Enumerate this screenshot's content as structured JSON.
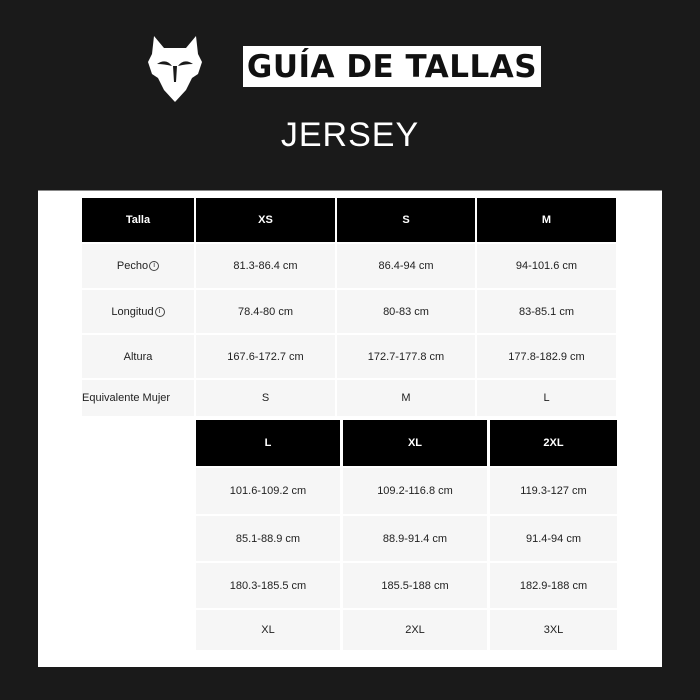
{
  "header": {
    "logo": "FOX",
    "title": "GUÍA DE TALLAS",
    "subtitle": "JERSEY"
  },
  "table1": {
    "header": [
      "Talla",
      "XS",
      "S",
      "M"
    ],
    "rows": [
      {
        "label": "Pecho",
        "info": true,
        "values": [
          "81.3-86.4 cm",
          "86.4-94 cm",
          "94-101.6 cm"
        ]
      },
      {
        "label": "Longitud",
        "info": true,
        "values": [
          "78.4-80 cm",
          "80-83 cm",
          "83-85.1 cm"
        ]
      },
      {
        "label": "Altura",
        "info": false,
        "values": [
          "167.6-172.7 cm",
          "172.7-177.8 cm",
          "177.8-182.9 cm"
        ]
      },
      {
        "label": "Equivalente Mujer",
        "info": false,
        "values": [
          "S",
          "M",
          "L"
        ]
      }
    ]
  },
  "table2": {
    "header": [
      "L",
      "XL",
      "2XL"
    ],
    "rows": [
      [
        "101.6-109.2 cm",
        "109.2-116.8 cm",
        "119.3-127 cm"
      ],
      [
        "85.1-88.9 cm",
        "88.9-91.4 cm",
        "91.4-94 cm"
      ],
      [
        "180.3-185.5 cm",
        "185.5-188 cm",
        "182.9-188 cm"
      ],
      [
        "XL",
        "2XL",
        "3XL"
      ]
    ]
  },
  "info_icon": "ⓘ"
}
